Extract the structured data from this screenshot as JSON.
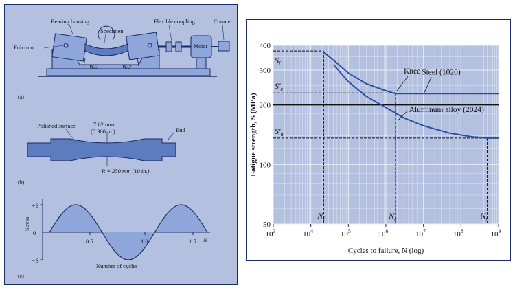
{
  "colors": {
    "panel_bg": "#b3c0e0",
    "part_fill": "#8ea6da",
    "part_dark": "#5d7cc0",
    "curve": "#2a4fa0",
    "grid": "#e9edf8",
    "border": "#1c2a66"
  },
  "machine": {
    "bearing_housing": "Bearing housing",
    "specimen": "Specimen",
    "flexible_coupling": "Flexible coupling",
    "counter": "Counter",
    "fulcrum": "Fulcrum",
    "motor": "Motor",
    "load_left": "W/2",
    "load_right": "W/2",
    "tag": "(a)"
  },
  "specimen_drawing": {
    "polished_surface": "Polished surface",
    "diameter_mm": "7.62 mm",
    "diameter_in": "(0.300 in.)",
    "end": "End",
    "radius": "R = 250 mm (10 in.)",
    "tag": "(b)"
  },
  "stress_cycle": {
    "ylabel": "Stress",
    "plus_s": "+S",
    "minus_s": "−S",
    "zero": "0",
    "ticks": [
      "0.5",
      "1.0",
      "1.5"
    ],
    "n_label": "N",
    "xlabel": "Number of cycles",
    "tag": "(c)",
    "cycles": 1.5
  },
  "chart_data": {
    "type": "line",
    "ylabel": "Fatigue strength, S (MPa)",
    "xlabel": "Cycles to failure, N (log)",
    "xscale": "log",
    "yscale": "log",
    "xlim": [
      1000,
      1000000000
    ],
    "ylim": [
      50,
      400
    ],
    "x_ticks": [
      {
        "base": "10",
        "exp": "3",
        "value": 1000
      },
      {
        "base": "10",
        "exp": "4",
        "value": 10000
      },
      {
        "base": "10",
        "exp": "5",
        "value": 100000
      },
      {
        "base": "10",
        "exp": "6",
        "value": 1000000
      },
      {
        "base": "10",
        "exp": "7",
        "value": 10000000
      },
      {
        "base": "10",
        "exp": "8",
        "value": 100000000
      },
      {
        "base": "10",
        "exp": "9",
        "value": 1000000000
      }
    ],
    "y_ticks": [
      {
        "label": "400",
        "value": 400
      },
      {
        "label": "300",
        "value": 300
      },
      {
        "label": "200",
        "value": 200
      },
      {
        "label": "100",
        "value": 100
      },
      {
        "label": "50",
        "value": 50
      }
    ],
    "grid": true,
    "series": [
      {
        "name": "Steel (1020)",
        "points": [
          [
            22000,
            370
          ],
          [
            50000,
            325
          ],
          [
            100000,
            290
          ],
          [
            300000,
            256
          ],
          [
            1000000,
            236
          ],
          [
            1800000,
            228
          ],
          [
            1000000000,
            228
          ]
        ]
      },
      {
        "name": "Aluminum alloy (2024)",
        "points": [
          [
            40000,
            320
          ],
          [
            100000,
            262
          ],
          [
            300000,
            221
          ],
          [
            1000000,
            194
          ],
          [
            3000000,
            172
          ],
          [
            10000000,
            157
          ],
          [
            50000000,
            144
          ],
          [
            200000000,
            138
          ],
          [
            500000000,
            136
          ],
          [
            1000000000,
            136
          ]
        ]
      }
    ],
    "reference_lines": [
      {
        "label": "S",
        "sub": "f",
        "prime": false,
        "y": 375,
        "x_end": 22000,
        "x_label": "N",
        "x_sub": "f"
      },
      {
        "label": "S",
        "sub": "e",
        "prime": true,
        "y": 230,
        "x_end": 1800000,
        "x_label": "N",
        "x_sub": "e"
      },
      {
        "label": "S",
        "sub": "n",
        "prime": true,
        "y": 136,
        "x_end": 500000000,
        "x_label": "N",
        "x_sub": "n"
      }
    ],
    "baseline_y": 200,
    "annotations": [
      {
        "text": "Knee",
        "x": 1800000,
        "y": 230
      },
      {
        "text": "Steel (1020)",
        "x": 7000000,
        "y": 228
      },
      {
        "text": "Aluminum alloy (2024)",
        "x": 1500000,
        "y": 190
      }
    ]
  }
}
